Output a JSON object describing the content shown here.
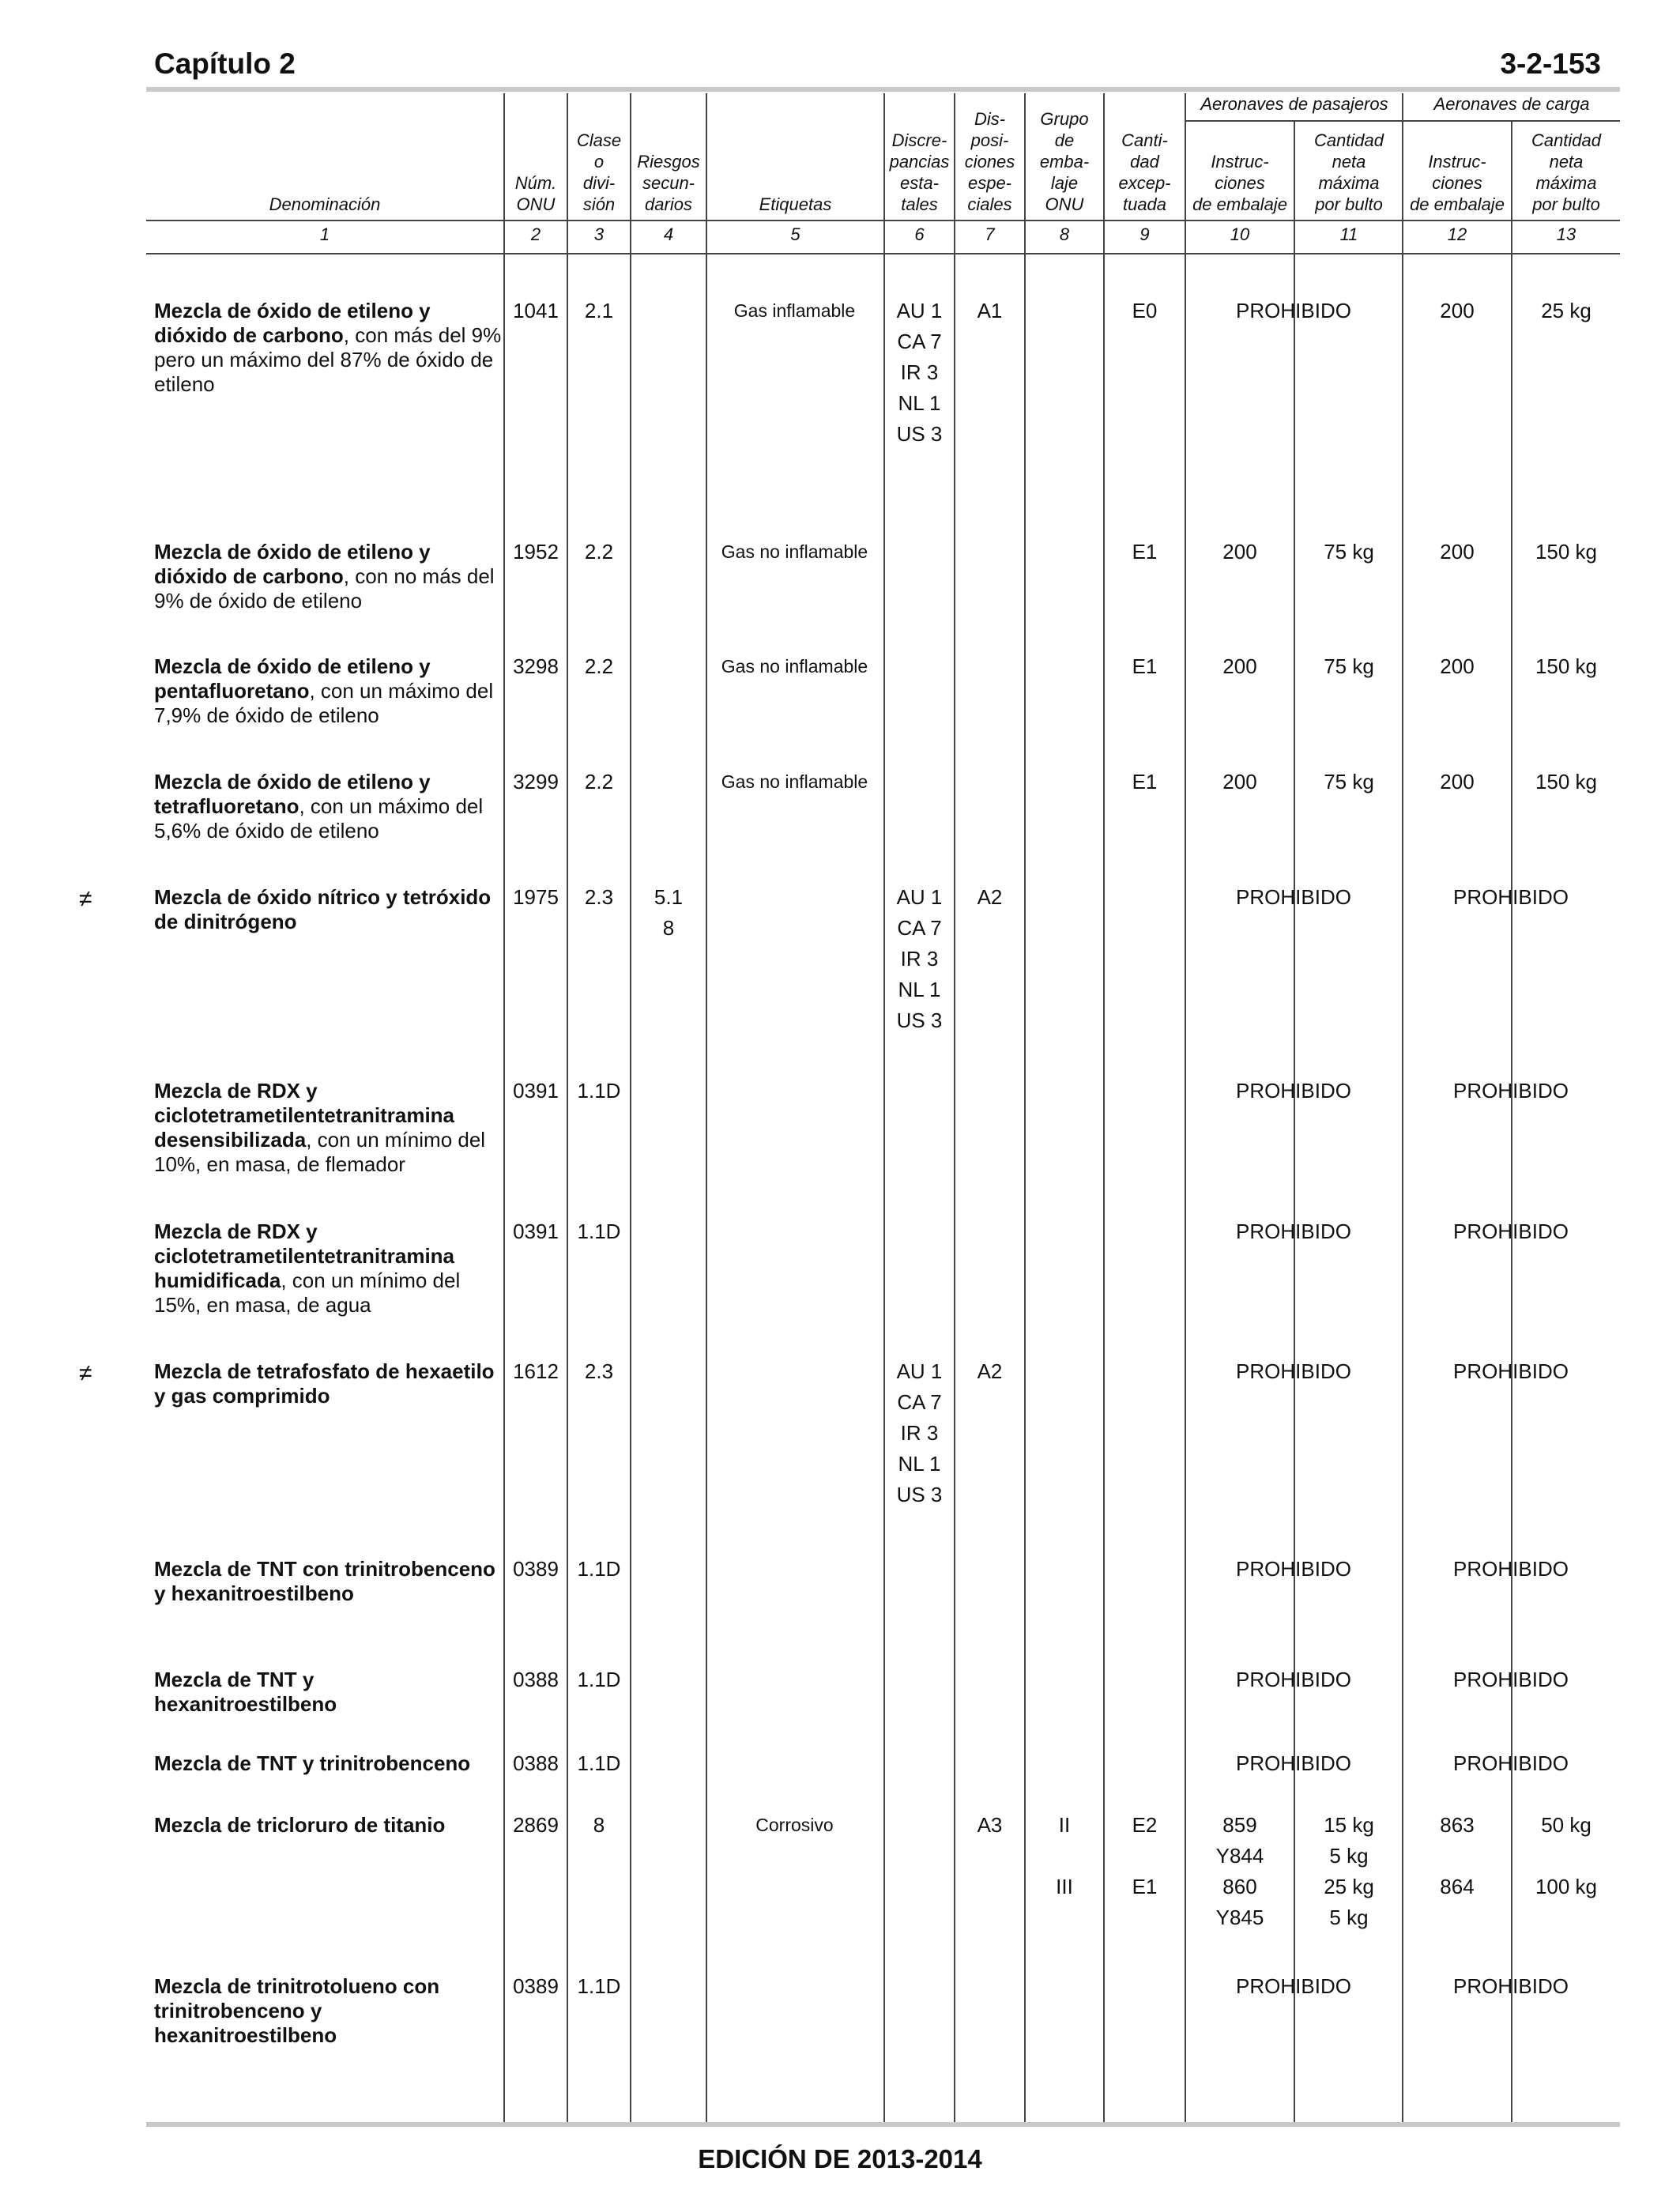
{
  "header": {
    "chapter": "Capítulo 2",
    "page": "3-2-153"
  },
  "table_header": {
    "group_passenger": "Aeronaves de pasajeros",
    "group_cargo": "Aeronaves de carga",
    "columns": [
      {
        "label": "Denominación",
        "num": "1"
      },
      {
        "label": "Núm.\nONU",
        "num": "2"
      },
      {
        "label": "Clase\no\ndivi-\nsión",
        "num": "3"
      },
      {
        "label": "Riesgos\nsecun-\ndarios",
        "num": "4"
      },
      {
        "label": "Etiquetas",
        "num": "5"
      },
      {
        "label": "Discre-\npancias\nesta-\ntales",
        "num": "6"
      },
      {
        "label": "Dis-\nposi-\nciones\nespe-\nciales",
        "num": "7"
      },
      {
        "label": "Grupo\nde\nemba-\nlaje\nONU",
        "num": "8"
      },
      {
        "label": "Canti-\ndad\nexcep-\ntuada",
        "num": "9"
      },
      {
        "label": "Instruc-\nciones\nde embalaje",
        "num": "10"
      },
      {
        "label": "Cantidad\nneta\nmáxima\npor bulto",
        "num": "11"
      },
      {
        "label": "Instruc-\nciones\nde embalaje",
        "num": "12"
      },
      {
        "label": "Cantidad\nneta\nmáxima\npor bulto",
        "num": "13"
      }
    ]
  },
  "rows": [
    {
      "name_bold": "Mezcla de óxido de etileno y dióxido de carbono",
      "name_rest": ", con más del 9% pero un máximo del 87% de óxido de etileno",
      "un": "1041",
      "class": "2.1",
      "risks": "",
      "label": "Gas inflamable",
      "discrepancies": "AU 1\nCA 7\nIR 3\nNL 1\nUS 3",
      "special": "A1",
      "group": "",
      "excepted": "E0",
      "pax_prohibited": "PROHIBIDO",
      "pax_instr": "",
      "pax_qty": "",
      "cargo_prohibited": "",
      "cargo_instr": "200",
      "cargo_qty": "25 kg",
      "mark": ""
    },
    {
      "name_bold": "Mezcla de óxido de etileno y dióxido de carbono",
      "name_rest": ", con no más del 9% de óxido de etileno",
      "un": "1952",
      "class": "2.2",
      "risks": "",
      "label": "Gas no inflamable",
      "discrepancies": "",
      "special": "",
      "group": "",
      "excepted": "E1",
      "pax_prohibited": "",
      "pax_instr": "200",
      "pax_qty": "75 kg",
      "cargo_prohibited": "",
      "cargo_instr": "200",
      "cargo_qty": "150 kg",
      "mark": ""
    },
    {
      "name_bold": "Mezcla de óxido de etileno y pentafluoretano",
      "name_rest": ", con un máximo del 7,9% de óxido de etileno",
      "un": "3298",
      "class": "2.2",
      "risks": "",
      "label": "Gas no inflamable",
      "discrepancies": "",
      "special": "",
      "group": "",
      "excepted": "E1",
      "pax_prohibited": "",
      "pax_instr": "200",
      "pax_qty": "75 kg",
      "cargo_prohibited": "",
      "cargo_instr": "200",
      "cargo_qty": "150 kg",
      "mark": ""
    },
    {
      "name_bold": "Mezcla de óxido de etileno y tetrafluoretano",
      "name_rest": ", con un máximo del 5,6% de óxido de etileno",
      "un": "3299",
      "class": "2.2",
      "risks": "",
      "label": "Gas no inflamable",
      "discrepancies": "",
      "special": "",
      "group": "",
      "excepted": "E1",
      "pax_prohibited": "",
      "pax_instr": "200",
      "pax_qty": "75 kg",
      "cargo_prohibited": "",
      "cargo_instr": "200",
      "cargo_qty": "150 kg",
      "mark": ""
    },
    {
      "name_bold": "Mezcla de óxido nítrico y tetróxido de dinitrógeno",
      "name_rest": "",
      "un": "1975",
      "class": "2.3",
      "risks": "5.1\n8",
      "label": "",
      "discrepancies": "AU 1\nCA 7\nIR 3\nNL 1\nUS 3",
      "special": "A2",
      "group": "",
      "excepted": "",
      "pax_prohibited": "PROHIBIDO",
      "pax_instr": "",
      "pax_qty": "",
      "cargo_prohibited": "PROHIBIDO",
      "cargo_instr": "",
      "cargo_qty": "",
      "mark": "≠"
    },
    {
      "name_bold": "Mezcla de RDX y ciclotetrametilentetranitramina desensibilizada",
      "name_rest": ", con un mínimo del 10%, en masa, de flemador",
      "un": "0391",
      "class": "1.1D",
      "risks": "",
      "label": "",
      "discrepancies": "",
      "special": "",
      "group": "",
      "excepted": "",
      "pax_prohibited": "PROHIBIDO",
      "pax_instr": "",
      "pax_qty": "",
      "cargo_prohibited": "PROHIBIDO",
      "cargo_instr": "",
      "cargo_qty": "",
      "mark": ""
    },
    {
      "name_bold": "Mezcla de RDX y ciclotetrametilentetranitramina humidificada",
      "name_rest": ", con un mínimo del 15%, en masa, de agua",
      "un": "0391",
      "class": "1.1D",
      "risks": "",
      "label": "",
      "discrepancies": "",
      "special": "",
      "group": "",
      "excepted": "",
      "pax_prohibited": "PROHIBIDO",
      "pax_instr": "",
      "pax_qty": "",
      "cargo_prohibited": "PROHIBIDO",
      "cargo_instr": "",
      "cargo_qty": "",
      "mark": ""
    },
    {
      "name_bold": "Mezcla de tetrafosfato de hexaetilo y gas comprimido",
      "name_rest": "",
      "un": "1612",
      "class": "2.3",
      "risks": "",
      "label": "",
      "discrepancies": "AU 1\nCA 7\nIR 3\nNL 1\nUS 3",
      "special": "A2",
      "group": "",
      "excepted": "",
      "pax_prohibited": "PROHIBIDO",
      "pax_instr": "",
      "pax_qty": "",
      "cargo_prohibited": "PROHIBIDO",
      "cargo_instr": "",
      "cargo_qty": "",
      "mark": "≠"
    },
    {
      "name_bold": "Mezcla de TNT con trinitrobenceno y hexanitroestilbeno",
      "name_rest": "",
      "un": "0389",
      "class": "1.1D",
      "risks": "",
      "label": "",
      "discrepancies": "",
      "special": "",
      "group": "",
      "excepted": "",
      "pax_prohibited": "PROHIBIDO",
      "pax_instr": "",
      "pax_qty": "",
      "cargo_prohibited": "PROHIBIDO",
      "cargo_instr": "",
      "cargo_qty": "",
      "mark": ""
    },
    {
      "name_bold": "Mezcla de TNT y hexanitroestilbeno",
      "name_rest": "",
      "un": "0388",
      "class": "1.1D",
      "risks": "",
      "label": "",
      "discrepancies": "",
      "special": "",
      "group": "",
      "excepted": "",
      "pax_prohibited": "PROHIBIDO",
      "pax_instr": "",
      "pax_qty": "",
      "cargo_prohibited": "PROHIBIDO",
      "cargo_instr": "",
      "cargo_qty": "",
      "mark": ""
    },
    {
      "name_bold": "Mezcla de TNT y trinitrobenceno",
      "name_rest": "",
      "un": "0388",
      "class": "1.1D",
      "risks": "",
      "label": "",
      "discrepancies": "",
      "special": "",
      "group": "",
      "excepted": "",
      "pax_prohibited": "PROHIBIDO",
      "pax_instr": "",
      "pax_qty": "",
      "cargo_prohibited": "PROHIBIDO",
      "cargo_instr": "",
      "cargo_qty": "",
      "mark": ""
    },
    {
      "name_bold": "Mezcla de tricloruro de titanio",
      "name_rest": "",
      "un": "2869",
      "class": "8",
      "risks": "",
      "label": "Corrosivo",
      "discrepancies": "",
      "special": "A3",
      "group": "II\n\nIII",
      "excepted": "E2\n\nE1",
      "pax_prohibited": "",
      "pax_instr": "859\nY844\n860\nY845",
      "pax_qty": "15 kg\n5 kg\n25 kg\n5 kg",
      "cargo_prohibited": "",
      "cargo_instr": "863\n\n864",
      "cargo_qty": "50 kg\n\n100 kg",
      "mark": ""
    },
    {
      "name_bold": "Mezcla de trinitrotolueno con trinitrobenceno y hexanitroestilbeno",
      "name_rest": "",
      "un": "0389",
      "class": "1.1D",
      "risks": "",
      "label": "",
      "discrepancies": "",
      "special": "",
      "group": "",
      "excepted": "",
      "pax_prohibited": "PROHIBIDO",
      "pax_instr": "",
      "pax_qty": "",
      "cargo_prohibited": "PROHIBIDO",
      "cargo_instr": "",
      "cargo_qty": "",
      "mark": ""
    }
  ],
  "footer": {
    "edition": "EDICIÓN DE 2013-2014"
  }
}
